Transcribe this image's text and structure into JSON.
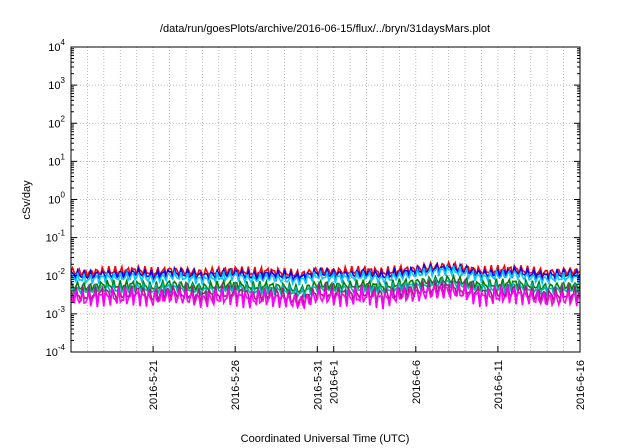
{
  "chart_data": {
    "type": "line",
    "title": "/data/run/goesPlots/archive/2016-06-15/flux/../bryn/31daysMars.plot",
    "xlabel": "Coordinated Universal Time (UTC)",
    "ylabel": "cSv/day",
    "yscale": "log",
    "ylim": [
      0.0001,
      10000
    ],
    "xlim": [
      "2016-05-16",
      "2016-06-16"
    ],
    "x_ticks": [
      "2016-5-21",
      "2016-5-26",
      "2016-5-31",
      "2016-6-1",
      "2016-6-6",
      "2016-6-11",
      "2016-6-16"
    ],
    "y_tick_exponents": [
      -4,
      -3,
      -2,
      -1,
      0,
      1,
      2,
      3,
      4
    ],
    "y_tick_base": "10",
    "grid": true,
    "series": [
      {
        "color": "#ff0000",
        "values": [
          0.013,
          0.012,
          0.013,
          0.013,
          0.014,
          0.012,
          0.014,
          0.013,
          0.012,
          0.013,
          0.014,
          0.012,
          0.013,
          0.012,
          0.0105,
          0.014,
          0.013,
          0.013,
          0.014,
          0.012,
          0.014,
          0.015,
          0.017,
          0.018,
          0.016,
          0.013,
          0.014,
          0.015,
          0.013,
          0.012,
          0.013,
          0.013
        ]
      },
      {
        "color": "#0000ff",
        "values": [
          0.011,
          0.01,
          0.011,
          0.011,
          0.012,
          0.01,
          0.012,
          0.011,
          0.01,
          0.011,
          0.012,
          0.01,
          0.011,
          0.01,
          0.009,
          0.012,
          0.011,
          0.011,
          0.012,
          0.01,
          0.012,
          0.013,
          0.015,
          0.016,
          0.014,
          0.011,
          0.012,
          0.013,
          0.011,
          0.01,
          0.011,
          0.011
        ]
      },
      {
        "color": "#00c8ff",
        "values": [
          0.009,
          0.008,
          0.009,
          0.009,
          0.01,
          0.008,
          0.01,
          0.009,
          0.008,
          0.009,
          0.01,
          0.008,
          0.009,
          0.008,
          0.0075,
          0.01,
          0.009,
          0.009,
          0.01,
          0.008,
          0.01,
          0.011,
          0.013,
          0.014,
          0.012,
          0.009,
          0.01,
          0.011,
          0.009,
          0.008,
          0.009,
          0.009
        ]
      },
      {
        "color": "#008000",
        "values": [
          0.0055,
          0.005,
          0.0058,
          0.0055,
          0.006,
          0.005,
          0.0062,
          0.0056,
          0.005,
          0.0055,
          0.006,
          0.005,
          0.0055,
          0.005,
          0.0042,
          0.006,
          0.0056,
          0.0055,
          0.006,
          0.005,
          0.0062,
          0.0068,
          0.0075,
          0.008,
          0.007,
          0.0056,
          0.006,
          0.0065,
          0.0056,
          0.005,
          0.0055,
          0.0055
        ]
      },
      {
        "color": "#00b4b4",
        "values": [
          0.0045,
          0.0042,
          0.0047,
          0.0045,
          0.005,
          0.0042,
          0.0051,
          0.0046,
          0.0041,
          0.0045,
          0.005,
          0.0041,
          0.0045,
          0.0042,
          0.0035,
          0.005,
          0.0046,
          0.0045,
          0.005,
          0.0042,
          0.0051,
          0.0056,
          0.0062,
          0.0066,
          0.0058,
          0.0046,
          0.005,
          0.0054,
          0.0046,
          0.0042,
          0.0045,
          0.0045
        ]
      },
      {
        "color": "#a0207a",
        "values": [
          0.0033,
          0.003,
          0.0035,
          0.0033,
          0.0037,
          0.003,
          0.0038,
          0.0034,
          0.003,
          0.0033,
          0.0037,
          0.003,
          0.0033,
          0.003,
          0.0022,
          0.0037,
          0.0034,
          0.0033,
          0.0037,
          0.003,
          0.0038,
          0.0042,
          0.0046,
          0.005,
          0.0043,
          0.0034,
          0.0037,
          0.004,
          0.0034,
          0.003,
          0.0033,
          0.0033
        ]
      },
      {
        "color": "#ff00ff",
        "values": [
          0.0027,
          0.0024,
          0.0028,
          0.0026,
          0.003,
          0.0024,
          0.003,
          0.0027,
          0.0023,
          0.0026,
          0.0029,
          0.0023,
          0.0026,
          0.0024,
          0.0019,
          0.0029,
          0.0027,
          0.0026,
          0.0029,
          0.0024,
          0.003,
          0.0033,
          0.0037,
          0.004,
          0.0035,
          0.0027,
          0.0029,
          0.0032,
          0.0027,
          0.0023,
          0.0026,
          0.0026
        ]
      }
    ]
  }
}
